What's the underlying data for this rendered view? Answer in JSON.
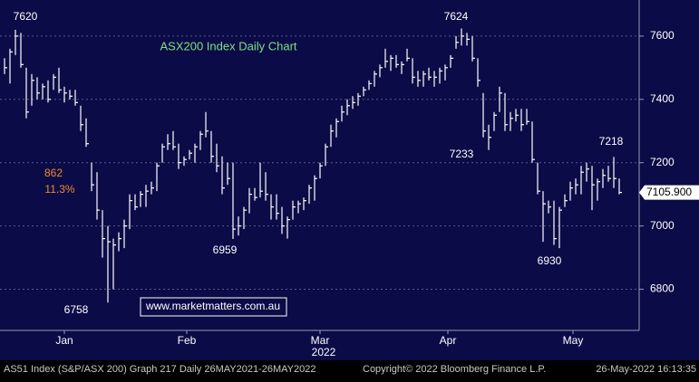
{
  "chart_data": {
    "type": "ohlc",
    "title": "ASX200 Index Daily Chart",
    "watermark": "www.marketmatters.com.au",
    "year_label": "2022",
    "last_price_label": "7105.900",
    "footer": [
      "AS51 Index (S&P/ASX 200) Graph 217  Daily 26MAY2021-26MAY2022",
      "Copyright© 2022 Bloomberg Finance L.P.",
      "26-May-2022 16:13:35"
    ],
    "annotations": [
      "7620",
      "6758",
      "6959",
      "7624",
      "7233",
      "6930",
      "7218",
      "862",
      "11.3%"
    ],
    "categories": [
      null,
      null,
      null,
      null,
      null,
      null,
      null,
      null,
      null,
      null,
      null,
      null,
      null,
      null,
      null,
      null,
      null,
      null,
      null,
      null,
      null,
      null,
      null,
      null,
      null,
      null,
      null,
      null,
      null,
      null,
      null,
      null,
      null,
      null,
      null,
      null,
      null,
      null,
      null,
      null,
      null,
      null,
      null,
      null,
      null,
      null,
      null,
      null,
      null,
      null,
      null,
      null,
      null,
      null,
      null,
      null,
      null,
      null,
      null,
      null,
      null,
      null,
      null,
      null,
      null,
      null,
      null,
      null,
      null,
      null,
      null,
      null,
      null,
      null,
      null,
      null,
      null,
      null,
      null,
      null,
      null,
      null,
      null,
      null,
      null,
      null,
      null,
      null,
      null,
      null,
      null,
      null,
      null,
      null,
      null,
      null,
      null,
      null,
      null,
      null,
      null,
      null,
      null,
      null,
      null,
      null,
      null,
      null,
      null,
      null,
      null,
      null,
      null,
      null
    ],
    "highs": [
      7530,
      7560,
      7620,
      7610,
      7500,
      7480,
      7470,
      7450,
      7460,
      7480,
      7500,
      7440,
      7430,
      7430,
      7380,
      7340,
      7200,
      7170,
      7050,
      7000,
      6960,
      6980,
      7020,
      7100,
      7100,
      7110,
      7130,
      7140,
      7200,
      7260,
      7290,
      7300,
      7260,
      7220,
      7240,
      7260,
      7300,
      7360,
      7300,
      7260,
      7220,
      7200,
      7200,
      7030,
      7060,
      7120,
      7120,
      7200,
      7170,
      7100,
      7100,
      7060,
      7030,
      7080,
      7080,
      7090,
      7130,
      7160,
      7200,
      7260,
      7320,
      7340,
      7380,
      7400,
      7410,
      7420,
      7440,
      7460,
      7490,
      7510,
      7560,
      7540,
      7540,
      7520,
      7560,
      7530,
      7490,
      7490,
      7500,
      7490,
      7500,
      7510,
      7540,
      7600,
      7624,
      7610,
      7600,
      7530,
      7420,
      7320,
      7360,
      7440,
      7420,
      7360,
      7370,
      7370,
      7370,
      7330,
      7200,
      7110,
      7080,
      7080,
      7060,
      7100,
      7140,
      7150,
      7190,
      7200,
      7190,
      7150,
      7180,
      7190,
      7218,
      7150
    ],
    "lows": [
      7480,
      7450,
      7540,
      7500,
      7340,
      7380,
      7400,
      7400,
      7390,
      7430,
      7420,
      7390,
      7400,
      7380,
      7300,
      7250,
      7110,
      7020,
      6900,
      6758,
      6800,
      6920,
      6930,
      6990,
      7050,
      7060,
      7060,
      7100,
      7110,
      7200,
      7240,
      7240,
      7180,
      7190,
      7210,
      7200,
      7240,
      7280,
      7200,
      7170,
      7100,
      7130,
      6959,
      6970,
      6990,
      7040,
      7080,
      7090,
      7080,
      7020,
      7020,
      6975,
      6960,
      7020,
      7040,
      7050,
      7070,
      7080,
      7150,
      7190,
      7250,
      7280,
      7330,
      7350,
      7370,
      7380,
      7410,
      7430,
      7440,
      7470,
      7500,
      7490,
      7500,
      7480,
      7520,
      7450,
      7440,
      7440,
      7460,
      7440,
      7450,
      7460,
      7500,
      7560,
      7570,
      7570,
      7520,
      7440,
      7280,
      7240,
      7300,
      7360,
      7300,
      7300,
      7330,
      7300,
      7320,
      7200,
      7100,
      6950,
      7040,
      6940,
      6930,
      7060,
      7080,
      7100,
      7100,
      7140,
      7050,
      7080,
      7120,
      7140,
      7120,
      7100
    ],
    "closes": [
      7500,
      7550,
      7600,
      7510,
      7360,
      7460,
      7420,
      7440,
      7400,
      7470,
      7430,
      7420,
      7410,
      7390,
      7320,
      7260,
      7130,
      7050,
      6960,
      6950,
      6940,
      6960,
      7000,
      7080,
      7060,
      7100,
      7110,
      7120,
      7190,
      7250,
      7260,
      7250,
      7200,
      7210,
      7230,
      7250,
      7290,
      7300,
      7220,
      7190,
      7120,
      7150,
      6990,
      7000,
      7050,
      7100,
      7090,
      7110,
      7100,
      7060,
      7040,
      7000,
      7020,
      7060,
      7070,
      7080,
      7120,
      7150,
      7190,
      7250,
      7300,
      7330,
      7360,
      7380,
      7390,
      7410,
      7430,
      7450,
      7480,
      7500,
      7520,
      7530,
      7510,
      7510,
      7530,
      7470,
      7460,
      7480,
      7470,
      7470,
      7490,
      7500,
      7530,
      7580,
      7600,
      7590,
      7530,
      7460,
      7300,
      7280,
      7350,
      7420,
      7320,
      7340,
      7350,
      7320,
      7330,
      7210,
      7110,
      7070,
      7060,
      6960,
      7050,
      7080,
      7120,
      7130,
      7170,
      7180,
      7130,
      7140,
      7160,
      7150,
      7150,
      7105.9
    ],
    "color": "#ffffff",
    "ylim": [
      6670,
      7714
    ],
    "yticks": [
      6800,
      7000,
      7200,
      7400,
      7600
    ],
    "xticks": [
      {
        "value": 11,
        "label": "Jan"
      },
      {
        "value": 33.5,
        "label": "Feb"
      },
      {
        "value": 58,
        "label": "Mar"
      },
      {
        "value": 81.5,
        "label": "Apr"
      },
      {
        "value": 104.5,
        "label": "May"
      }
    ],
    "grid": true
  }
}
